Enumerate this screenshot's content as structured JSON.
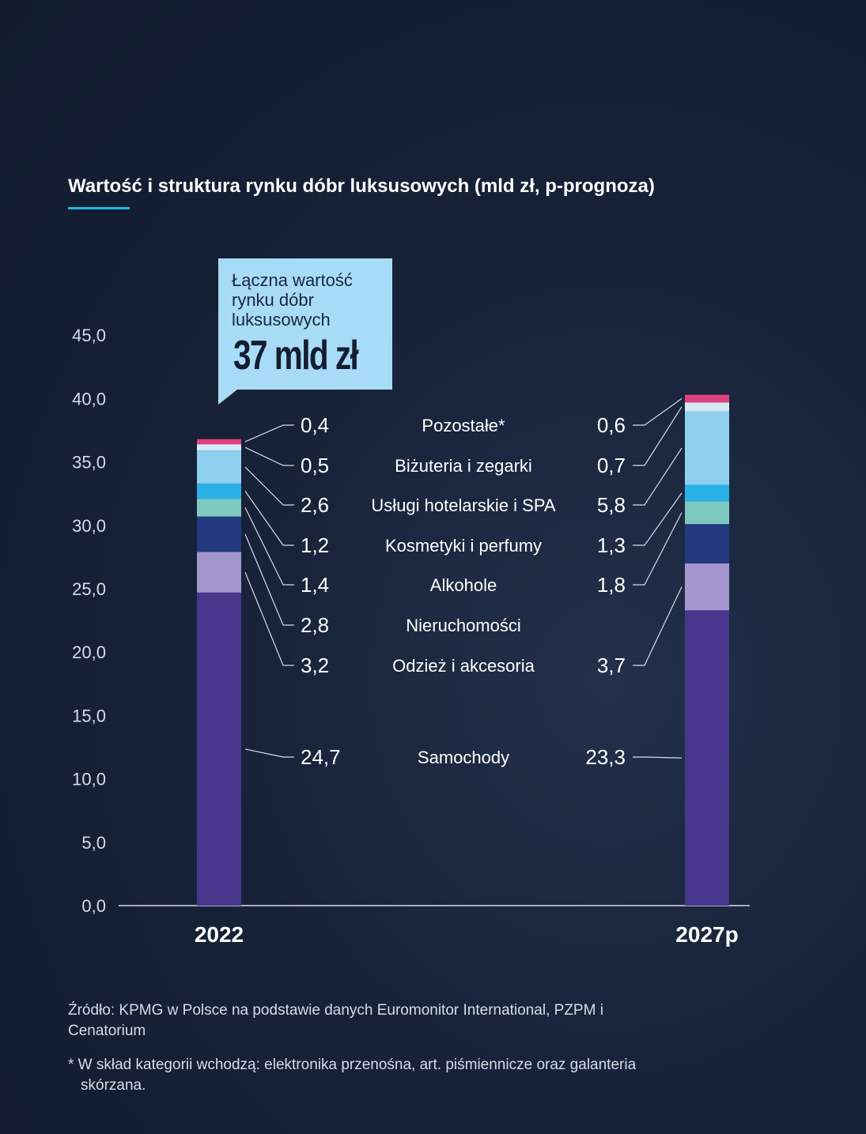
{
  "title": "Wartość i struktura rynku dóbr luksusowych (mld zł, p-prognoza)",
  "callout": {
    "text": "Łączna wartość rynku dóbr luksusowych",
    "value": "37 mld zł"
  },
  "source": "Źródło: KPMG w Polsce na podstawie danych Euromonitor International, PZPM i Cenatorium",
  "footnote": "* W skład kategorii wchodzą: elektronika przenośna, art. piśmiennicze oraz galanteria skórzana.",
  "colors": {
    "callout_bg": "#a8dcf6",
    "axis": "#d7dce6",
    "accent": "#1fb6ea"
  },
  "chart_data": {
    "type": "bar",
    "stacked": true,
    "title": "Wartość i struktura rynku dóbr luksusowych (mld zł, p-prognoza)",
    "categories": [
      "2022",
      "2027p"
    ],
    "ylim": [
      0,
      45
    ],
    "yticks": [
      "0,0",
      "5,0",
      "10,0",
      "15,0",
      "20,0",
      "25,0",
      "30,0",
      "35,0",
      "40,0",
      "45,0"
    ],
    "yticks_values": [
      0,
      5,
      10,
      15,
      20,
      25,
      30,
      35,
      40,
      45
    ],
    "series": [
      {
        "name": "Samochody",
        "color": "#47378c",
        "values": [
          24.7,
          23.3
        ],
        "labels": [
          "24,7",
          "23,3"
        ]
      },
      {
        "name": "Odzież i akcesoria",
        "color": "#a396cc",
        "values": [
          3.2,
          3.7
        ],
        "labels": [
          "3,2",
          "3,7"
        ]
      },
      {
        "name": "Nieruchomości",
        "color": "#233a80",
        "values": [
          2.8,
          3.1
        ],
        "labels": [
          "2,8",
          ""
        ]
      },
      {
        "name": "Alkohole",
        "color": "#7fcac0",
        "values": [
          1.4,
          1.8
        ],
        "labels": [
          "1,4",
          "1,8"
        ]
      },
      {
        "name": "Kosmetyki i perfumy",
        "color": "#2ab2e8",
        "values": [
          1.2,
          1.3
        ],
        "labels": [
          "1,2",
          "1,3"
        ]
      },
      {
        "name": "Usługi hotelarskie i SPA",
        "color": "#8fcfef",
        "values": [
          2.6,
          5.8
        ],
        "labels": [
          "2,6",
          "5,8"
        ]
      },
      {
        "name": "Biżuteria i zegarki",
        "color": "#d6eaf8",
        "values": [
          0.5,
          0.7
        ],
        "labels": [
          "0,5",
          "0,7"
        ]
      },
      {
        "name": "Pozostałe*",
        "color": "#e0407e",
        "values": [
          0.4,
          0.6
        ],
        "labels": [
          "0,4",
          "0,6"
        ]
      }
    ]
  }
}
